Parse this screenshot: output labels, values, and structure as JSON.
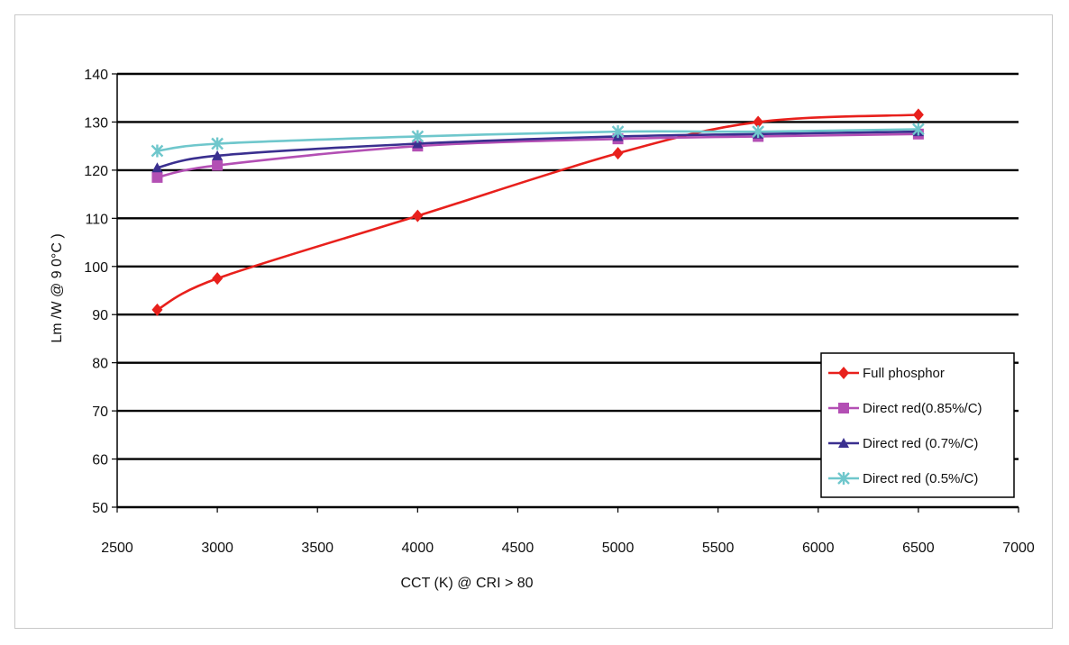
{
  "chart_data": {
    "type": "line",
    "title": "",
    "xlabel": "CCT (K) @ CRI > 80",
    "ylabel": "Lm /W  @ 9 0°C )",
    "xlim": [
      2500,
      7000
    ],
    "ylim": [
      50,
      140
    ],
    "xticks": [
      2500,
      3000,
      3500,
      4000,
      4500,
      5000,
      5500,
      6000,
      6500,
      7000
    ],
    "xtick_labels": [
      "2500",
      "3000",
      "3500",
      "4000",
      "4500",
      "5000",
      "5500",
      "6000",
      "6500",
      "7000"
    ],
    "yticks": [
      50,
      60,
      70,
      80,
      90,
      100,
      110,
      120,
      130,
      140
    ],
    "ytick_labels": [
      "50",
      "60",
      "70",
      "80",
      "90",
      "100",
      "110",
      "120",
      "130",
      "140"
    ],
    "grid": "horizontal",
    "legend_position": "bottom-right",
    "series": [
      {
        "name": "Full phosphor",
        "color": "#e8201c",
        "marker": "diamond",
        "x": [
          2700,
          3000,
          4000,
          5000,
          5700,
          6500
        ],
        "y": [
          91,
          97.5,
          110.5,
          123.5,
          130,
          131.5
        ]
      },
      {
        "name": "Direct red(0.85%/C)",
        "color": "#b34fb4",
        "marker": "square",
        "x": [
          2700,
          3000,
          4000,
          5000,
          5700,
          6500
        ],
        "y": [
          118.5,
          121,
          125,
          126.5,
          127,
          127.5
        ]
      },
      {
        "name": "Direct red (0.7%/C)",
        "color": "#3a2f8f",
        "marker": "triangle",
        "x": [
          2700,
          3000,
          4000,
          5000,
          5700,
          6500
        ],
        "y": [
          120.5,
          123,
          125.5,
          127,
          127.5,
          128
        ]
      },
      {
        "name": "Direct red (0.5%/C)",
        "color": "#6fc7cc",
        "marker": "asterisk",
        "x": [
          2700,
          3000,
          4000,
          5000,
          5700,
          6500
        ],
        "y": [
          124,
          125.5,
          127,
          128,
          128,
          128.5
        ]
      }
    ]
  }
}
